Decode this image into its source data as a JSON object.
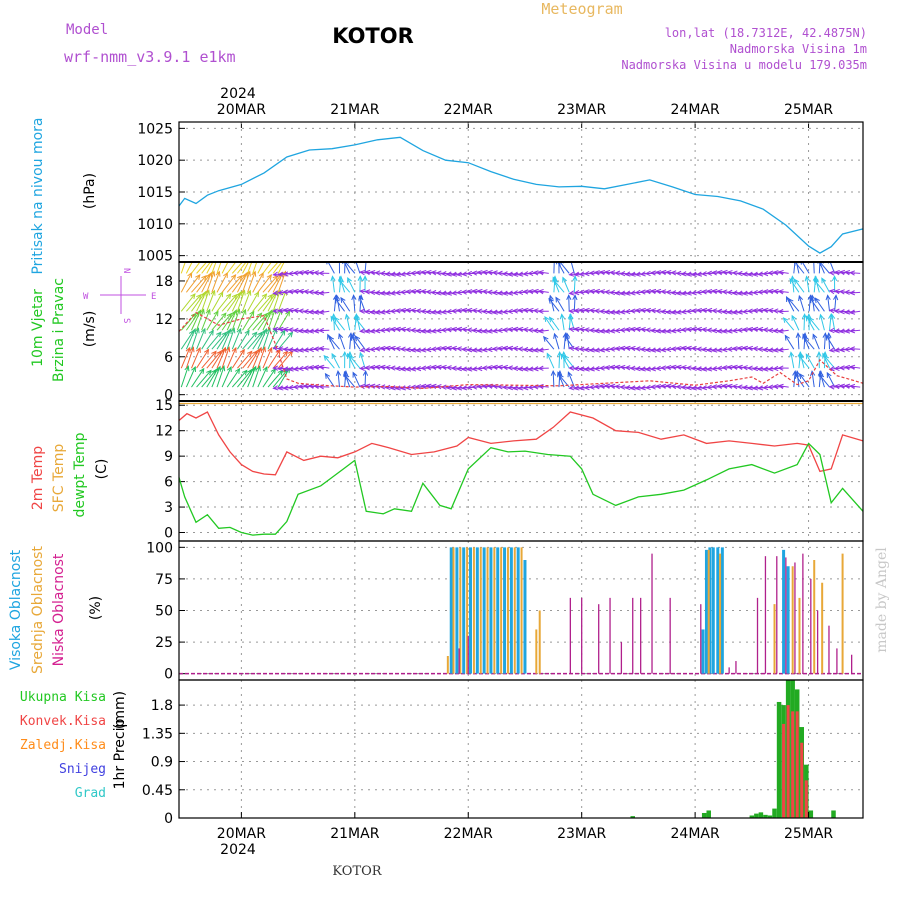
{
  "header": {
    "model_label": "Model",
    "model_name": "wrf-nmm_v3.9.1  e1km",
    "station": "KOTOR",
    "title": "Meteogram",
    "coords": "lon,lat (18.7312E, 42.4875N)",
    "elevation": "Nadmorska Visina 1m",
    "model_elevation": "Nadmorska Visina u modelu 179.035m",
    "footer_station": "KOTOR",
    "credit": "made by Angel"
  },
  "colors": {
    "pressure": "#1fa5e0",
    "temp2m": "#f04545",
    "sfc_temp": "#e8a838",
    "dewpt": "#22c822",
    "high_cloud": "#1fa5e0",
    "mid_cloud": "#e8a838",
    "low_cloud": "#b0208c",
    "total_precip": "#22aa22",
    "conv_precip": "#f04545",
    "frozen": "#ff8c1a",
    "snow": "#4040e0",
    "hail": "#30c8c8",
    "wind_label": "#22c822",
    "dir_label": "#c050e0"
  },
  "time_axis": {
    "year": "2024",
    "days": [
      "20MAR",
      "21MAR",
      "22MAR",
      "23MAR",
      "24MAR",
      "25MAR"
    ],
    "range_days": [
      -0.55,
      5.48
    ]
  },
  "chart_data": [
    {
      "type": "line",
      "panel": "pressure",
      "ylabel": "Pritisak na nivou mora",
      "unit": "(hPa)",
      "ylim": [
        1004,
        1026
      ],
      "yticks": [
        1005,
        1010,
        1015,
        1020,
        1025
      ],
      "grid": true,
      "series": [
        {
          "name": "Pritisak na nivou mora",
          "x": [
            -0.55,
            -0.5,
            -0.4,
            -0.3,
            -0.2,
            0,
            0.2,
            0.4,
            0.6,
            0.8,
            1.0,
            1.2,
            1.4,
            1.6,
            1.8,
            2.0,
            2.2,
            2.4,
            2.6,
            2.8,
            3.0,
            3.2,
            3.4,
            3.6,
            3.8,
            4.0,
            4.2,
            4.4,
            4.6,
            4.8,
            5.0,
            5.1,
            5.2,
            5.3,
            5.48
          ],
          "values": [
            1012.8,
            1014,
            1013.2,
            1014.5,
            1015.2,
            1016.2,
            1018,
            1020.5,
            1021.6,
            1021.8,
            1022.4,
            1023.2,
            1023.6,
            1021.5,
            1020,
            1019.6,
            1018.2,
            1017,
            1016.2,
            1015.8,
            1015.9,
            1015.5,
            1016.2,
            1016.9,
            1015.8,
            1014.6,
            1014.3,
            1013.6,
            1012.3,
            1009.8,
            1006.5,
            1005.4,
            1006.4,
            1008.4,
            1009.2
          ]
        }
      ]
    },
    {
      "type": "line",
      "panel": "wind",
      "ylabel": "10m Vjetar",
      "ylabel2": "Brzina i Pravac",
      "unit": "(m/s)",
      "ylim": [
        -1,
        21
      ],
      "yticks": [
        0,
        6,
        12,
        18
      ],
      "grid": true,
      "direction_key": {
        "west": "W",
        "east": "E",
        "north": "N",
        "south": "S"
      },
      "series": [
        {
          "name": "wind speed",
          "x": [
            -0.55,
            -0.4,
            -0.2,
            0,
            0.2,
            0.3,
            0.4,
            0.5,
            0.7,
            1.0,
            1.3,
            1.6,
            2.0,
            2.4,
            2.8,
            3.2,
            3.6,
            4.0,
            4.3,
            4.5,
            4.6,
            4.75,
            4.9,
            5.0,
            5.1,
            5.25,
            5.35,
            5.48
          ],
          "values": [
            10,
            13,
            11,
            12,
            12.5,
            8,
            2.5,
            1.8,
            1.5,
            1.2,
            1.3,
            1.0,
            1.6,
            1.5,
            1.4,
            1.8,
            2.2,
            1.5,
            2.2,
            2.8,
            1.8,
            3.5,
            1.6,
            2.2,
            5.5,
            3.0,
            2.5,
            1.8
          ]
        }
      ]
    },
    {
      "type": "line",
      "panel": "temperature",
      "ylabel": "2m Temp",
      "ylabel2": "SFC Temp",
      "ylabel3": "dewpt Temp",
      "unit": "(C)",
      "ylim": [
        -1,
        15.5
      ],
      "yticks": [
        0,
        3,
        6,
        9,
        12,
        15
      ],
      "grid": true,
      "series": [
        {
          "name": "2m Temp",
          "x": [
            -0.55,
            -0.48,
            -0.4,
            -0.3,
            -0.2,
            -0.1,
            0,
            0.1,
            0.2,
            0.3,
            0.4,
            0.55,
            0.7,
            0.85,
            1.0,
            1.15,
            1.3,
            1.5,
            1.7,
            1.9,
            2.0,
            2.2,
            2.4,
            2.6,
            2.75,
            2.9,
            3.1,
            3.3,
            3.5,
            3.7,
            3.9,
            4.1,
            4.3,
            4.5,
            4.7,
            4.9,
            5.0,
            5.1,
            5.2,
            5.3,
            5.48
          ],
          "values": [
            13.2,
            14,
            13.5,
            14.2,
            11.5,
            9.5,
            8,
            7.2,
            6.9,
            6.8,
            9.5,
            8.5,
            9,
            8.8,
            9.5,
            10.5,
            10,
            9.2,
            9.5,
            10.2,
            11.2,
            10.5,
            10.8,
            11,
            12.4,
            14.2,
            13.5,
            12,
            11.8,
            11,
            11.5,
            10.5,
            10.8,
            10.5,
            10.2,
            10.5,
            10.3,
            7.2,
            7.5,
            11.5,
            10.8
          ]
        },
        {
          "name": "SFC Temp",
          "x": [
            -0.55,
            5.48
          ],
          "values": [
            15.2,
            15.2
          ]
        },
        {
          "name": "dewpt Temp",
          "x": [
            -0.55,
            -0.5,
            -0.4,
            -0.3,
            -0.2,
            -0.1,
            0,
            0.1,
            0.2,
            0.3,
            0.4,
            0.5,
            0.7,
            0.8,
            0.9,
            1.0,
            1.1,
            1.25,
            1.35,
            1.5,
            1.6,
            1.75,
            1.85,
            2.0,
            2.2,
            2.35,
            2.5,
            2.7,
            2.9,
            3.0,
            3.1,
            3.3,
            3.5,
            3.7,
            3.9,
            4.1,
            4.3,
            4.5,
            4.7,
            4.9,
            5.0,
            5.1,
            5.2,
            5.3,
            5.48
          ],
          "values": [
            6.5,
            4.2,
            1.2,
            2.1,
            0.5,
            0.6,
            0,
            -0.3,
            -0.2,
            -0.2,
            1.3,
            4.5,
            5.5,
            6.5,
            7.5,
            8.5,
            2.5,
            2.2,
            2.8,
            2.5,
            5.8,
            3.2,
            2.8,
            7.5,
            10,
            9.5,
            9.6,
            9.2,
            9,
            7.5,
            4.5,
            3.2,
            4.2,
            4.5,
            5,
            6.2,
            7.5,
            8,
            7,
            8,
            10.5,
            9.2,
            3.5,
            5.2,
            2.5
          ]
        }
      ]
    },
    {
      "type": "bar",
      "panel": "cloud",
      "ylabel": "Visoka Oblacnost",
      "ylabel2": "Srednja Oblacnost",
      "ylabel3": "Niska Oblacnost",
      "unit": "(%)",
      "ylim": [
        -5,
        105
      ],
      "yticks": [
        0,
        25,
        50,
        75,
        100
      ],
      "grid": true,
      "series": [
        {
          "name": "Visoka Oblacnost",
          "x": [
            1.85,
            1.9,
            1.96,
            2.02,
            2.08,
            2.14,
            2.2,
            2.26,
            2.32,
            2.38,
            2.44,
            2.5,
            4.07,
            4.1,
            4.13,
            4.16,
            4.2,
            4.24,
            4.78,
            4.82
          ],
          "values": [
            100,
            100,
            100,
            100,
            100,
            100,
            100,
            100,
            100,
            100,
            100,
            90,
            35,
            98,
            100,
            100,
            100,
            100,
            98,
            85
          ]
        },
        {
          "name": "Srednja Oblacnost",
          "x": [
            1.82,
            1.87,
            1.93,
            1.99,
            2.05,
            2.11,
            2.17,
            2.23,
            2.29,
            2.35,
            2.41,
            2.47,
            2.6,
            2.63,
            4.12,
            4.22,
            4.7,
            4.86,
            4.92,
            5.05,
            5.12,
            5.3
          ],
          "values": [
            14,
            100,
            100,
            100,
            100,
            100,
            100,
            100,
            100,
            100,
            100,
            100,
            35,
            50,
            98,
            95,
            55,
            85,
            60,
            90,
            72,
            95
          ]
        },
        {
          "name": "Niska Oblacnost",
          "x": [
            1.92,
            2.0,
            2.9,
            3.0,
            3.15,
            3.25,
            3.35,
            3.45,
            3.52,
            3.62,
            3.78,
            4.05,
            4.3,
            4.36,
            4.55,
            4.62,
            4.72,
            4.8,
            4.88,
            4.95,
            5.02,
            5.08,
            5.18,
            5.25,
            5.38
          ],
          "values": [
            20,
            30,
            60,
            60,
            55,
            60,
            25,
            60,
            60,
            95,
            60,
            55,
            5,
            10,
            60,
            93,
            93,
            92,
            88,
            95,
            75,
            50,
            38,
            20,
            15
          ]
        }
      ]
    },
    {
      "type": "bar",
      "panel": "precip",
      "ylabel": "1hr Precip",
      "unit": "(mm)",
      "ylim": [
        0,
        2.2
      ],
      "yticks": [
        0,
        0.45,
        0.9,
        1.35,
        1.8
      ],
      "ytick_labels": [
        "0",
        "0.45",
        "0.9",
        "1.35",
        "1.8"
      ],
      "grid": true,
      "legend": [
        "Ukupna Kisa",
        "Konvek.Kisa",
        "Zaledj.Kisa",
        "Snijeg",
        "Grad"
      ],
      "series": [
        {
          "name": "Ukupna Kisa",
          "x": [
            3.45,
            4.08,
            4.12,
            4.5,
            4.54,
            4.58,
            4.62,
            4.66,
            4.7,
            4.74,
            4.78,
            4.82,
            4.86,
            4.9,
            4.94,
            4.98,
            5.02,
            5.22
          ],
          "values": [
            0.03,
            0.08,
            0.12,
            0.04,
            0.07,
            0.09,
            0.05,
            0.04,
            0.15,
            1.85,
            1.8,
            2.3,
            2.3,
            2.05,
            1.45,
            0.85,
            0.12,
            0.12
          ]
        },
        {
          "name": "Konvek.Kisa",
          "x": [
            4.78,
            4.82,
            4.86,
            4.9,
            4.94,
            4.98
          ],
          "values": [
            1.5,
            1.8,
            1.7,
            1.7,
            1.2,
            0.6
          ]
        }
      ]
    }
  ]
}
